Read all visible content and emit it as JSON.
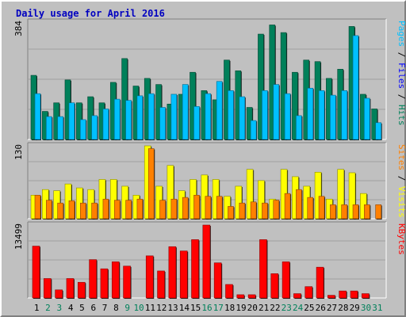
{
  "window_title": "Daily usage for April 2016",
  "chart_data": [
    {
      "type": "bar",
      "panel": "top",
      "ymax_label": "384",
      "ymax": 384,
      "legend": [
        {
          "name": "Pages",
          "color": "#00c0ff"
        },
        {
          "name": "Files",
          "color": "#0000ff"
        },
        {
          "name": "Hits",
          "color": "#00805a"
        }
      ],
      "legend_separator": " / ",
      "categories": [
        "1",
        "2",
        "3",
        "4",
        "5",
        "6",
        "7",
        "8",
        "9",
        "10",
        "11",
        "12",
        "13",
        "14",
        "15",
        "16",
        "17",
        "18",
        "19",
        "20",
        "21",
        "22",
        "23",
        "24",
        "25",
        "26",
        "27",
        "28",
        "29",
        "30",
        "31"
      ],
      "weekend_days": [
        "2",
        "3",
        "9",
        "10",
        "16",
        "17",
        "23",
        "24",
        "30",
        "31"
      ],
      "series": [
        {
          "name": "Hits",
          "values": [
            210,
            92,
            120,
            195,
            120,
            140,
            120,
            187,
            265,
            175,
            200,
            180,
            116,
            148,
            220,
            160,
            130,
            260,
            225,
            105,
            345,
            375,
            350,
            220,
            260,
            255,
            200,
            230,
            370,
            148,
            100
          ]
        },
        {
          "name": "Pages",
          "values": [
            150,
            75,
            75,
            120,
            65,
            78,
            100,
            132,
            128,
            143,
            150,
            105,
            148,
            180,
            108,
            150,
            190,
            160,
            140,
            62,
            160,
            180,
            150,
            78,
            168,
            160,
            145,
            160,
            340,
            135,
            55
          ]
        },
        {
          "name": "Files",
          "values": [
            0,
            0,
            0,
            0,
            0,
            0,
            0,
            0,
            0,
            0,
            0,
            0,
            0,
            0,
            0,
            0,
            0,
            0,
            0,
            0,
            0,
            0,
            0,
            0,
            0,
            0,
            0,
            0,
            0,
            0,
            0
          ]
        }
      ]
    },
    {
      "type": "bar",
      "panel": "middle",
      "ymax_label": "130",
      "ymax": 130,
      "legend": [
        {
          "name": "Sites",
          "color": "#ff8000"
        },
        {
          "name": "Visits",
          "color": "#ffff00"
        }
      ],
      "legend_separator": " / ",
      "categories": [
        "1",
        "2",
        "3",
        "4",
        "5",
        "6",
        "7",
        "8",
        "9",
        "10",
        "11",
        "12",
        "13",
        "14",
        "15",
        "16",
        "17",
        "18",
        "19",
        "20",
        "21",
        "22",
        "23",
        "24",
        "25",
        "26",
        "27",
        "28",
        "29",
        "30",
        "31"
      ],
      "series": [
        {
          "name": "Visits",
          "values": [
            42,
            52,
            50,
            62,
            55,
            52,
            70,
            70,
            58,
            42,
            130,
            58,
            95,
            50,
            70,
            78,
            70,
            40,
            58,
            88,
            68,
            35,
            88,
            75,
            58,
            83,
            35,
            88,
            82,
            45,
            0
          ]
        },
        {
          "name": "Sites",
          "values": [
            42,
            33,
            28,
            32,
            28,
            28,
            35,
            33,
            33,
            35,
            125,
            33,
            35,
            38,
            42,
            40,
            40,
            22,
            28,
            30,
            28,
            33,
            45,
            52,
            38,
            40,
            25,
            25,
            25,
            25,
            25
          ]
        }
      ]
    },
    {
      "type": "bar",
      "panel": "bottom",
      "ymax_label": "13499",
      "ymax": 13499,
      "legend": [
        {
          "name": "KBytes",
          "color": "#ff0000"
        }
      ],
      "legend_separator": "",
      "categories": [
        "1",
        "2",
        "3",
        "4",
        "5",
        "6",
        "7",
        "8",
        "9",
        "10",
        "11",
        "12",
        "13",
        "14",
        "15",
        "16",
        "17",
        "18",
        "19",
        "20",
        "21",
        "22",
        "23",
        "24",
        "25",
        "26",
        "27",
        "28",
        "29",
        "30",
        "31"
      ],
      "series": [
        {
          "name": "KBytes",
          "values": [
            9600,
            3600,
            1500,
            3600,
            2900,
            7100,
            5400,
            6700,
            5900,
            0,
            7800,
            5000,
            9500,
            8700,
            10800,
            13499,
            6500,
            2500,
            600,
            600,
            10800,
            4500,
            6700,
            800,
            2100,
            5700,
            500,
            1300,
            1300,
            800,
            0
          ]
        }
      ]
    }
  ]
}
